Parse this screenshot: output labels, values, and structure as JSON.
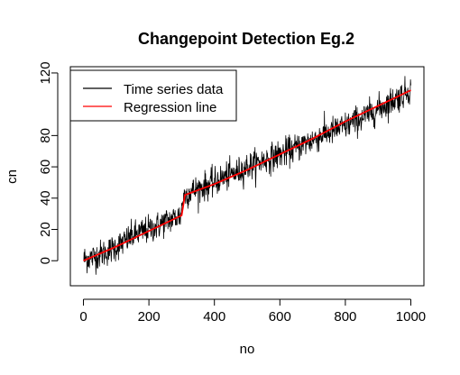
{
  "chart_data": {
    "type": "line",
    "title": "Changepoint Detection Eg.2",
    "xlabel": "no",
    "ylabel": "cn",
    "xlim": [
      -40,
      1040
    ],
    "ylim": [
      -16,
      124
    ],
    "x_ticks": [
      0,
      200,
      400,
      600,
      800,
      1000
    ],
    "x_tick_labels": [
      "0",
      "200",
      "400",
      "600",
      "800",
      "1000"
    ],
    "y_ticks": [
      0,
      20,
      40,
      60,
      80,
      120
    ],
    "y_tick_labels": [
      "0",
      "20",
      "40",
      "60",
      "80",
      "120"
    ],
    "grid": false,
    "legend_position": "top-left",
    "series": [
      {
        "name": "Time series data",
        "color": "#000000",
        "n_points": 1000,
        "x": [
          0,
          25,
          50,
          75,
          100,
          125,
          150,
          175,
          200,
          225,
          250,
          275,
          299,
          300,
          310,
          325,
          350,
          375,
          400,
          425,
          450,
          475,
          500,
          525,
          550,
          575,
          600,
          625,
          650,
          675,
          700,
          725,
          750,
          775,
          800,
          825,
          850,
          875,
          900,
          925,
          950,
          975,
          1000
        ],
        "y": [
          1,
          2,
          4,
          6,
          9,
          12,
          16,
          18,
          20,
          22,
          25,
          27,
          29,
          36,
          42,
          44,
          46,
          48,
          50,
          53,
          55,
          57,
          60,
          62,
          64,
          66,
          68,
          70,
          72,
          75,
          77,
          80,
          82,
          84,
          86,
          89,
          91,
          94,
          97,
          100,
          103,
          106,
          110
        ],
        "noise_sd": 4.5
      },
      {
        "name": "Regression line",
        "color": "#ff0000",
        "x": [
          0,
          100,
          200,
          300,
          310,
          400,
          500,
          600,
          700,
          800,
          900,
          1000
        ],
        "y": [
          0,
          9,
          19,
          29,
          42,
          49,
          58,
          68,
          78,
          89,
          99,
          109
        ]
      }
    ]
  }
}
